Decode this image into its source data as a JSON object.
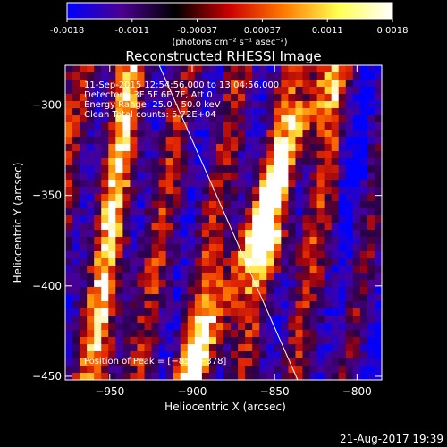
{
  "colorbar": {
    "tick_labels": [
      "-0.0018",
      "-0.0011",
      "-0.00037",
      "0.00037",
      "0.0011",
      "0.0018"
    ],
    "units_text": "(photons cm⁻² s⁻¹ asec⁻²)",
    "colors": [
      "#0000ff",
      "#4b0090",
      "#000000",
      "#cc0000",
      "#ff7a00",
      "#ffff50",
      "#ffffff"
    ]
  },
  "footer": {
    "timestamp": "21-Aug-2017 19:39"
  },
  "chart_data": {
    "type": "heatmap",
    "title": "Reconstructed RHESSI Image",
    "xlabel": "Heliocentric X (arcsec)",
    "ylabel": "Heliocentric Y (arcsec)",
    "xlim": [
      -977,
      -785
    ],
    "ylim": [
      -452,
      -278
    ],
    "xticks": [
      -950,
      -900,
      -850,
      -800
    ],
    "yticks": [
      -300,
      -350,
      -400,
      -450
    ],
    "xtick_labels": [
      "−950",
      "−900",
      "−850",
      "−800"
    ],
    "ytick_labels": [
      "−300",
      "−350",
      "−400",
      "−450"
    ],
    "value_range": [
      -0.0018,
      0.0018
    ],
    "annotations": [
      "11-Sep-2015 12:54:56.000 to 13:04:56.000",
      "Detectors: 3F 5F 6F 7F, Att 0",
      "Energy Range: 25.0 - 50.0 keV",
      "Clean     Total counts: 5.72E+04"
    ],
    "peak_label": "Position of Peak = [−855,−378]",
    "peak": [
      -855,
      -378
    ],
    "limb_line": [
      [
        -920,
        -278
      ],
      [
        -836,
        -452
      ]
    ]
  }
}
